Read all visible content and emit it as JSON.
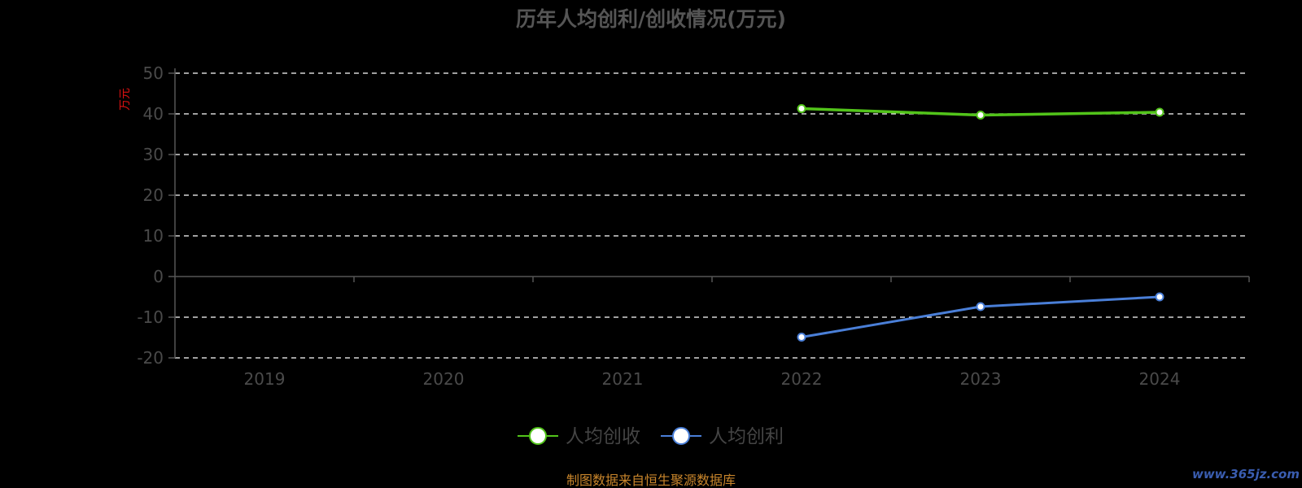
{
  "chart_data": {
    "type": "line",
    "title": "历年人均创利/创收情况(万元)",
    "ylabel": "万元",
    "categories": [
      "2019",
      "2020",
      "2021",
      "2022",
      "2023",
      "2024"
    ],
    "yticks": [
      "50",
      "40",
      "30",
      "20",
      "10",
      "0",
      "-10",
      "-20"
    ],
    "ylim": [
      -20,
      50
    ],
    "grid": true,
    "legend_position": "bottom-center",
    "series": [
      {
        "name": "人均创收",
        "color": "#52c41a",
        "values": [
          null,
          null,
          null,
          41.3,
          39.7,
          40.4
        ]
      },
      {
        "name": "人均创利",
        "color": "#4a7fd8",
        "values": [
          null,
          null,
          null,
          -14.9,
          -7.4,
          -5.0
        ]
      }
    ]
  },
  "footer": {
    "source": "制图数据来自恒生聚源数据库",
    "watermark": "www.365jz.com"
  }
}
